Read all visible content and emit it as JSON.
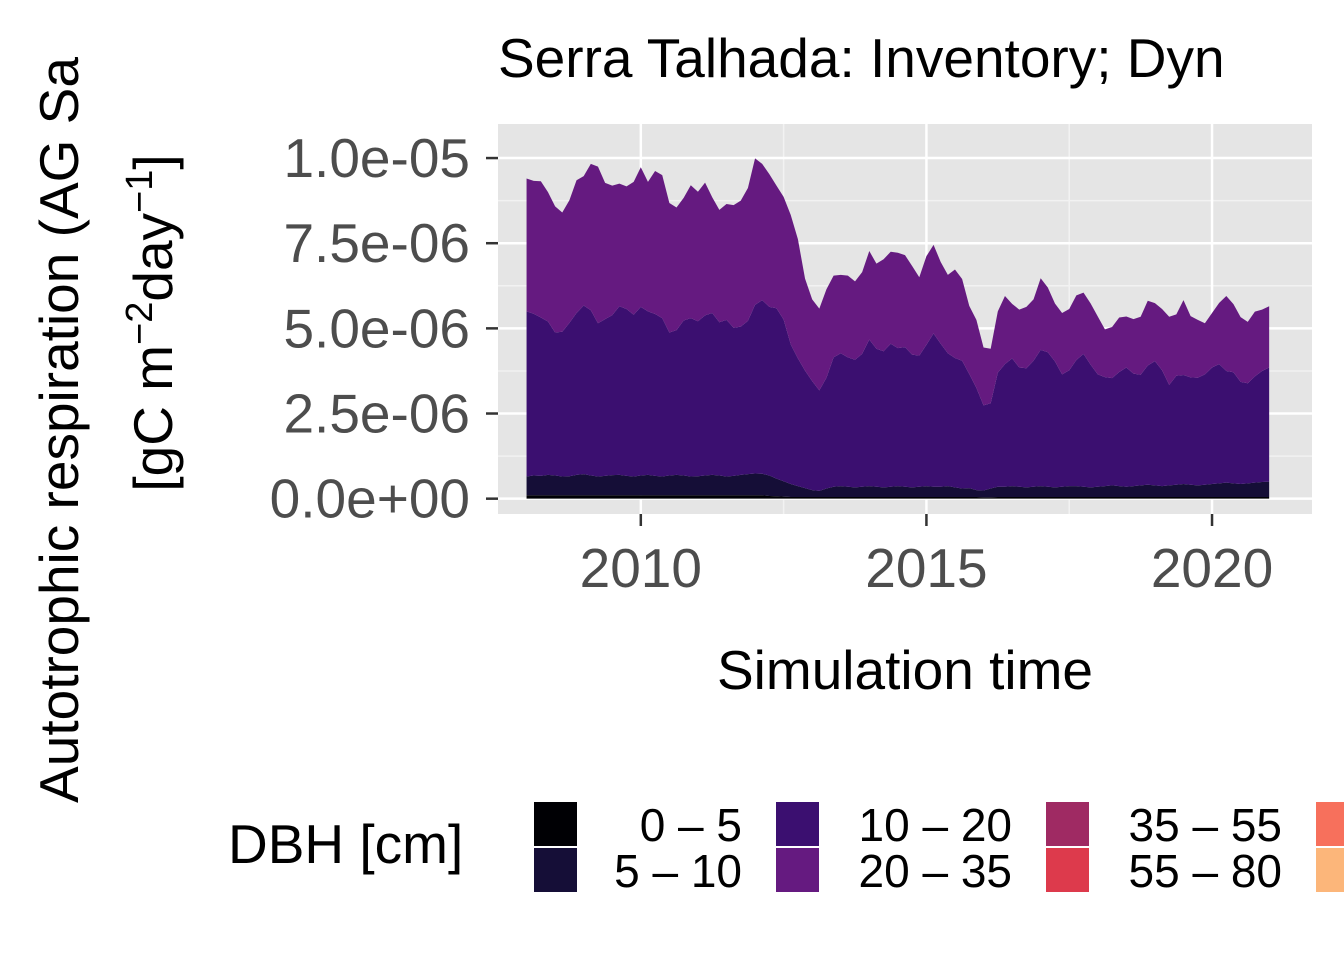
{
  "chart_data": {
    "type": "area",
    "stacked": true,
    "title": "Serra Talhada: Inventory; Dyn",
    "xlabel": "Simulation time",
    "ylabel_line1": "Autotrophic respiration (AG Sa",
    "ylabel_line2_parts": [
      "[gC m",
      "−2",
      "day",
      "−1",
      "]"
    ],
    "xlim": [
      2007.5,
      2021.75
    ],
    "ylim": [
      -4.5e-07,
      1.1e-05
    ],
    "x_ticks": [
      2010,
      2015,
      2020
    ],
    "x_tick_labels": [
      "2010",
      "2015",
      "2020"
    ],
    "y_ticks": [
      0,
      2.5e-06,
      5e-06,
      7.5e-06,
      1e-05
    ],
    "y_tick_labels": [
      "0.0e+00",
      "2.5e-06",
      "5.0e-06",
      "7.5e-06",
      "1.0e-05"
    ],
    "grid": true,
    "legend_position": "bottom",
    "legend": {
      "title": "DBH [cm]",
      "entries": [
        {
          "label": "0 – 5",
          "color": "#000004"
        },
        {
          "label": "5 – 10",
          "color": "#150e37"
        },
        {
          "label": "10 – 20",
          "color": "#3b0f70"
        },
        {
          "label": "20 – 35",
          "color": "#651a80"
        },
        {
          "label": "35 – 55",
          "color": "#9f2a63"
        },
        {
          "label": "55 – 80",
          "color": "#dd3a4c"
        },
        {
          "label": "",
          "color": "#f7705c"
        },
        {
          "label": "",
          "color": "#fcb67a"
        }
      ]
    },
    "x": [
      2008.0,
      2008.125,
      2008.25,
      2008.375,
      2008.5,
      2008.625,
      2008.75,
      2008.875,
      2009.0,
      2009.125,
      2009.25,
      2009.375,
      2009.5,
      2009.625,
      2009.75,
      2009.875,
      2010.0,
      2010.125,
      2010.25,
      2010.375,
      2010.5,
      2010.625,
      2010.75,
      2010.875,
      2011.0,
      2011.125,
      2011.25,
      2011.375,
      2011.5,
      2011.625,
      2011.75,
      2011.875,
      2012.0,
      2012.125,
      2012.25,
      2012.375,
      2012.5,
      2012.625,
      2012.75,
      2012.875,
      2013.0,
      2013.125,
      2013.25,
      2013.375,
      2013.5,
      2013.625,
      2013.75,
      2013.875,
      2014.0,
      2014.125,
      2014.25,
      2014.375,
      2014.5,
      2014.625,
      2014.75,
      2014.875,
      2015.0,
      2015.125,
      2015.25,
      2015.375,
      2015.5,
      2015.625,
      2015.75,
      2015.875,
      2016.0,
      2016.125,
      2016.25,
      2016.375,
      2016.5,
      2016.625,
      2016.75,
      2016.875,
      2017.0,
      2017.125,
      2017.25,
      2017.375,
      2017.5,
      2017.625,
      2017.75,
      2017.875,
      2018.0,
      2018.125,
      2018.25,
      2018.375,
      2018.5,
      2018.625,
      2018.75,
      2018.875,
      2019.0,
      2019.125,
      2019.25,
      2019.375,
      2019.5,
      2019.625,
      2019.75,
      2019.875,
      2020.0,
      2020.125,
      2020.25,
      2020.375,
      2020.5,
      2020.625,
      2020.75,
      2020.875,
      2021.0
    ],
    "series": [
      {
        "name": "0 – 5",
        "values": [
          1e-07,
          1e-07,
          1e-07,
          1e-07,
          1e-07,
          1e-07,
          1e-07,
          1e-07,
          1e-07,
          1e-07,
          1e-07,
          1e-07,
          1e-07,
          1e-07,
          1e-07,
          1e-07,
          1e-07,
          1e-07,
          1e-07,
          1e-07,
          1e-07,
          1e-07,
          1e-07,
          1e-07,
          1e-07,
          1e-07,
          1e-07,
          1e-07,
          1e-07,
          1e-07,
          1e-07,
          1e-07,
          1e-07,
          1e-07,
          8e-08,
          7e-08,
          6e-08,
          5e-08,
          5e-08,
          5e-08,
          5e-08,
          5e-08,
          5e-08,
          5e-08,
          5e-08,
          5e-08,
          5e-08,
          5e-08,
          5e-08,
          5e-08,
          5e-08,
          5e-08,
          5e-08,
          5e-08,
          5e-08,
          5e-08,
          5e-08,
          5e-08,
          5e-08,
          5e-08,
          5e-08,
          5e-08,
          5e-08,
          5e-08,
          4e-08,
          4e-08,
          5e-08,
          5e-08,
          5e-08,
          5e-08,
          5e-08,
          5e-08,
          5e-08,
          5e-08,
          5e-08,
          5e-08,
          5e-08,
          5e-08,
          5e-08,
          5e-08,
          5e-08,
          5e-08,
          5e-08,
          5e-08,
          5e-08,
          5e-08,
          5e-08,
          5e-08,
          5e-08,
          5e-08,
          5e-08,
          5e-08,
          5e-08,
          5e-08,
          5e-08,
          5e-08,
          5e-08,
          5e-08,
          5e-08,
          5e-08,
          5e-08,
          5e-08,
          5e-08,
          5e-08,
          5e-08
        ]
      },
      {
        "name": "5 – 10",
        "values": [
          5.5e-07,
          5.8e-07,
          5.7e-07,
          6e-07,
          5.8e-07,
          5.5e-07,
          5.6e-07,
          6e-07,
          6.2e-07,
          5.8e-07,
          5.5e-07,
          5.7e-07,
          5.9e-07,
          6e-07,
          5.7e-07,
          5.5e-07,
          5.8e-07,
          6e-07,
          5.7e-07,
          5.5e-07,
          5.8e-07,
          6e-07,
          5.8e-07,
          5.5e-07,
          5.6e-07,
          5.8e-07,
          6e-07,
          5.8e-07,
          5.5e-07,
          5.7e-07,
          6e-07,
          6.2e-07,
          6.4e-07,
          6.3e-07,
          6e-07,
          5.2e-07,
          4.5e-07,
          3.8e-07,
          3.2e-07,
          2.6e-07,
          2e-07,
          1.8e-07,
          2.5e-07,
          3e-07,
          3.2e-07,
          3e-07,
          2.8e-07,
          3e-07,
          3.2e-07,
          3e-07,
          2.8e-07,
          3e-07,
          3.2e-07,
          3e-07,
          2.8e-07,
          3e-07,
          3.2e-07,
          3e-07,
          3e-07,
          3.2e-07,
          2.8e-07,
          2.5e-07,
          2.6e-07,
          2e-07,
          2e-07,
          2.6e-07,
          3e-07,
          3e-07,
          3.2e-07,
          3e-07,
          2.8e-07,
          3e-07,
          3.2e-07,
          3e-07,
          2.8e-07,
          3e-07,
          3.2e-07,
          3.2e-07,
          3e-07,
          2.8e-07,
          3e-07,
          3.2e-07,
          3.4e-07,
          3.2e-07,
          3e-07,
          3.2e-07,
          3.4e-07,
          3.6e-07,
          3.4e-07,
          3.2e-07,
          3.4e-07,
          3.6e-07,
          3.8e-07,
          3.6e-07,
          3.4e-07,
          3.6e-07,
          3.8e-07,
          4e-07,
          4.2e-07,
          4e-07,
          3.8e-07,
          4e-07,
          4.2e-07,
          4.4e-07,
          4.5e-07
        ]
      },
      {
        "name": "10 – 20",
        "values": [
          4.85e-06,
          4.75e-06,
          4.65e-06,
          4.5e-06,
          4.2e-06,
          4.25e-06,
          4.5e-06,
          4.75e-06,
          4.95e-06,
          4.85e-06,
          4.5e-06,
          4.6e-06,
          4.7e-06,
          4.95e-06,
          4.9e-06,
          4.75e-06,
          4.95e-06,
          4.8e-06,
          4.75e-06,
          4.65e-06,
          4.2e-06,
          4.25e-06,
          4.55e-06,
          4.65e-06,
          4.55e-06,
          4.7e-06,
          4.75e-06,
          4.5e-06,
          4.6e-06,
          4.35e-06,
          4.35e-06,
          4.5e-06,
          4.95e-06,
          5.1e-06,
          4.95e-06,
          5e-06,
          4.75e-06,
          4.1e-06,
          3.75e-06,
          3.45e-06,
          3.2e-06,
          2.95e-06,
          3.25e-06,
          3.8e-06,
          3.9e-06,
          3.8e-06,
          3.75e-06,
          3.9e-06,
          4.3e-06,
          4.05e-06,
          4e-06,
          4.2e-06,
          4.05e-06,
          4.1e-06,
          3.9e-06,
          3.85e-06,
          4.15e-06,
          4.5e-06,
          4.2e-06,
          3.9e-06,
          3.8e-06,
          3.75e-06,
          3.35e-06,
          3e-06,
          2.5e-06,
          2.5e-06,
          3.35e-06,
          3.6e-06,
          3.75e-06,
          3.5e-06,
          3.5e-06,
          3.7e-06,
          4e-06,
          3.95e-06,
          3.7e-06,
          3.3e-06,
          3.4e-06,
          3.7e-06,
          3.9e-06,
          3.6e-06,
          3.3e-06,
          3.2e-06,
          3.15e-06,
          3.35e-06,
          3.5e-06,
          3.3e-06,
          3.25e-06,
          3.5e-06,
          3.65e-06,
          3.4e-06,
          2.95e-06,
          3.2e-06,
          3.2e-06,
          3.15e-06,
          3.16e-06,
          3.24e-06,
          3.42e-06,
          3.5e-06,
          3.28e-06,
          3.26e-06,
          3e-06,
          2.94e-06,
          3.12e-06,
          3.26e-06,
          3.35e-06
        ]
      },
      {
        "name": "20 – 35",
        "values": [
          3.9e-06,
          3.9e-06,
          4e-06,
          3.8e-06,
          3.7e-06,
          3.5e-06,
          3.6e-06,
          3.9e-06,
          3.8e-06,
          4.3e-06,
          4.6e-06,
          4e-06,
          3.8e-06,
          3.6e-06,
          3.6e-06,
          3.9e-06,
          4.1e-06,
          3.8e-06,
          4.2e-06,
          4.2e-06,
          3.8e-06,
          3.6e-06,
          3.6e-06,
          3.9e-06,
          3.8e-06,
          3.9e-06,
          3.4e-06,
          3.3e-06,
          3.4e-06,
          3.6e-06,
          3.7e-06,
          3.9e-06,
          4.3e-06,
          4e-06,
          3.9e-06,
          3.6e-06,
          3.6e-06,
          3.8e-06,
          3.5e-06,
          2.7e-06,
          2.4e-06,
          2.4e-06,
          2.6e-06,
          2.4e-06,
          2.3e-06,
          2.4e-06,
          2.3e-06,
          2.4e-06,
          2.6e-06,
          2.5e-06,
          2.7e-06,
          2.7e-06,
          2.8e-06,
          2.7e-06,
          2.6e-06,
          2.3e-06,
          2.6e-06,
          2.6e-06,
          2.4e-06,
          2.3e-06,
          2.6e-06,
          2.4e-06,
          2e-06,
          2e-06,
          1.7e-06,
          1.6e-06,
          1.8e-06,
          2e-06,
          1.6e-06,
          1.7e-06,
          1.8e-06,
          1.8e-06,
          2.1e-06,
          1.9e-06,
          1.7e-06,
          1.8e-06,
          1.8e-06,
          1.9e-06,
          1.8e-06,
          1.8e-06,
          1.7e-06,
          1.4e-06,
          1.5e-06,
          1.6e-06,
          1.5e-06,
          1.6e-06,
          1.7e-06,
          1.9e-06,
          1.7e-06,
          1.8e-06,
          2e-06,
          1.8e-06,
          2.2e-06,
          1.8e-06,
          1.7e-06,
          1.5e-06,
          1.6e-06,
          1.8e-06,
          2.2e-06,
          2e-06,
          1.9e-06,
          1.8e-06,
          1.9e-06,
          1.8e-06,
          1.8e-06
        ]
      },
      {
        "name": "35 – 55",
        "values": [
          0,
          0,
          0,
          0,
          0,
          0,
          0,
          0,
          0,
          0,
          0,
          0,
          0,
          0,
          0,
          0,
          0,
          0,
          0,
          0,
          0,
          0,
          0,
          0,
          0,
          0,
          0,
          0,
          0,
          0,
          0,
          0,
          0,
          0,
          0,
          0,
          0,
          0,
          0,
          0,
          0,
          0,
          0,
          0,
          0,
          0,
          0,
          0,
          0,
          0,
          0,
          0,
          0,
          0,
          0,
          0,
          0,
          0,
          0,
          0,
          0,
          0,
          0,
          0,
          0,
          0,
          0,
          0,
          0,
          0,
          0,
          0,
          0,
          0,
          0,
          0,
          0,
          0,
          0,
          0,
          0,
          0,
          0,
          0,
          0,
          0,
          0,
          0,
          0,
          0,
          0,
          0,
          0,
          0,
          0,
          0,
          0,
          0,
          0,
          0,
          0,
          0,
          0,
          0,
          0
        ]
      }
    ]
  }
}
